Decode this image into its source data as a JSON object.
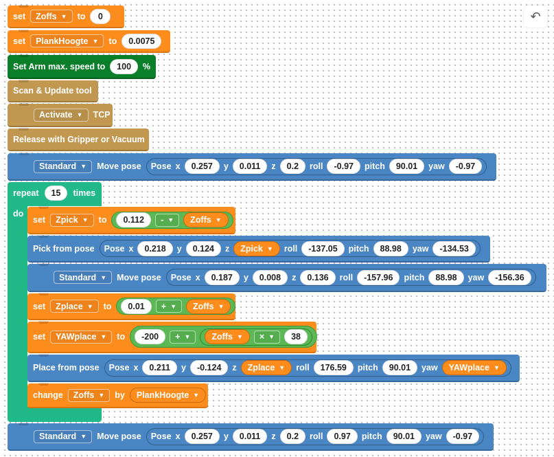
{
  "toolbar": {
    "undo_icon": "undo-icon"
  },
  "blocks": {
    "set_zoffs": {
      "set": "set",
      "var": "Zoffs",
      "to": "to",
      "value": "0"
    },
    "set_plank": {
      "set": "set",
      "var": "PlankHoogte",
      "to": "to",
      "value": "0.0075"
    },
    "arm_speed": {
      "label": "Set Arm max. speed to",
      "value": "100",
      "unit": "%"
    },
    "scan": {
      "label": "Scan & Update tool"
    },
    "activate": {
      "mode": "Activate",
      "label": "TCP"
    },
    "release": {
      "label": "Release with Gripper or Vacuum"
    },
    "move1": {
      "mode": "Standard",
      "label": "Move pose",
      "pose": "Pose",
      "x": "0.257",
      "y": "0.011",
      "z": "0.2",
      "roll": "-0.97",
      "pitch": "90.01",
      "yaw": "-0.97"
    },
    "repeat": {
      "label": "repeat",
      "count": "15",
      "times": "times",
      "do": "do"
    },
    "set_zpick": {
      "set": "set",
      "var": "Zpick",
      "to": "to",
      "a": "0.112",
      "op": "-",
      "b": "Zoffs"
    },
    "pick": {
      "label": "Pick from pose",
      "pose": "Pose",
      "x": "0.218",
      "y": "0.124",
      "z": "Zpick",
      "roll": "-137.05",
      "pitch": "88.98",
      "yaw": "-134.53"
    },
    "move2": {
      "mode": "Standard",
      "label": "Move pose",
      "pose": "Pose",
      "x": "0.187",
      "y": "0.008",
      "z": "0.136",
      "roll": "-157.96",
      "pitch": "88.98",
      "yaw": "-156.36"
    },
    "set_zplace": {
      "set": "set",
      "var": "Zplace",
      "to": "to",
      "a": "0.01",
      "op": "+",
      "b": "Zoffs"
    },
    "set_yaw": {
      "set": "set",
      "var": "YAWplace",
      "to": "to",
      "a": "-200",
      "op": "+",
      "b": "Zoffs",
      "op2": "×",
      "c": "38"
    },
    "place": {
      "label": "Place from pose",
      "pose": "Pose",
      "x": "0.211",
      "y": "-0.124",
      "z": "Zplace",
      "roll": "176.59",
      "pitch": "90.01",
      "yaw": "YAWplace"
    },
    "change": {
      "label": "change",
      "var": "Zoffs",
      "by": "by",
      "value": "PlankHoogte"
    },
    "move3": {
      "mode": "Standard",
      "label": "Move pose",
      "pose": "Pose",
      "x": "0.257",
      "y": "0.011",
      "z": "0.2",
      "roll": "0.97",
      "pitch": "90.01",
      "yaw": "-0.97"
    }
  },
  "axis_labels": {
    "x": "x",
    "y": "y",
    "z": "z",
    "roll": "roll",
    "pitch": "pitch",
    "yaw": "yaw"
  },
  "caret": "▼",
  "colors": {
    "variables": "#fc8c1c",
    "motion": "#4a86c4",
    "loop": "#20b987",
    "tool": "#c29850",
    "speed": "#0a7f2a"
  }
}
